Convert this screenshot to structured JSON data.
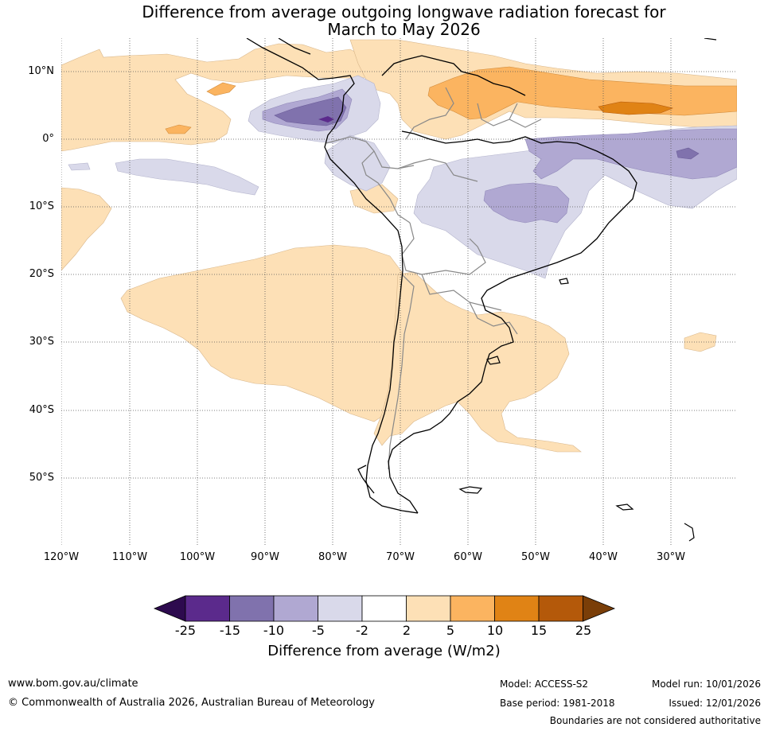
{
  "title": {
    "line1": "Difference from average outgoing longwave radiation forecast for",
    "line2": "March to May 2026"
  },
  "lat_labels": [
    "10°N",
    "0°",
    "10°S",
    "20°S",
    "30°S",
    "40°S",
    "50°S"
  ],
  "lon_labels": [
    "120°W",
    "110°W",
    "100°W",
    "90°W",
    "80°W",
    "70°W",
    "60°W",
    "50°W",
    "40°W",
    "30°W"
  ],
  "colorbar": {
    "ticks": [
      "-25",
      "-15",
      "-10",
      "-5",
      "-2",
      "2",
      "5",
      "10",
      "15",
      "25"
    ],
    "colors": [
      "#2d0a4e",
      "#5b2a8c",
      "#8072ad",
      "#b0a8d2",
      "#d9d9ea",
      "#ffffff",
      "#fde0b6",
      "#fbb460",
      "#e08315",
      "#b4590a",
      "#7a3e08"
    ],
    "label": "Difference from average (W/m2)"
  },
  "footer": {
    "website": "www.bom.gov.au/climate",
    "copyright": "© Commonwealth of Australia 2026, Australian Bureau of Meteorology",
    "model": "Model: ACCESS-S2",
    "base_period": "Base period: 1981-2018",
    "model_run": "Model run: 10/01/2026",
    "issued": "Issued: 12/01/2026",
    "disclaimer": "Boundaries are not considered authoritative"
  }
}
